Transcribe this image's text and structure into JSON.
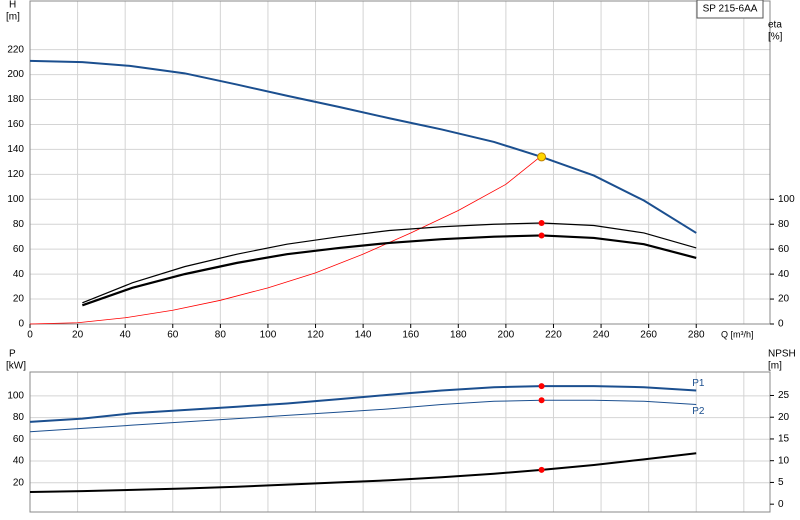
{
  "chart_data": [
    {
      "type": "line",
      "annotation": "SP 215-6AA",
      "y_label": "H",
      "y_unit": "[m]",
      "y2_label": "eta",
      "y2_unit": "[%]",
      "x_label": "Q [m³/h]",
      "xlim": [
        0,
        311
      ],
      "xticks": [
        0,
        20,
        40,
        60,
        80,
        100,
        120,
        140,
        160,
        180,
        200,
        220,
        240,
        260,
        280
      ],
      "x_grid": [
        0,
        20,
        40,
        60,
        80,
        100,
        120,
        140,
        160,
        180,
        200,
        220,
        240,
        260,
        280,
        300
      ],
      "show_x_tick_labels": true,
      "ylim": [
        0,
        259
      ],
      "yticks": [
        0,
        20,
        40,
        60,
        80,
        100,
        120,
        140,
        160,
        180,
        200,
        220
      ],
      "y2lim": [
        0,
        259
      ],
      "y2ticks": [
        0,
        20,
        40,
        60,
        80,
        100
      ],
      "grid": true,
      "series": [
        {
          "color": "#1b4f8f",
          "line_width": 2,
          "x": [
            0,
            22,
            42,
            65,
            87,
            108,
            130,
            151,
            173,
            195,
            215,
            237,
            258,
            280
          ],
          "values": [
            211,
            210,
            207,
            201,
            192,
            183,
            174,
            165,
            156,
            146,
            134,
            119,
            99,
            73
          ]
        },
        {
          "color": "#ff0000",
          "line_width": 0.8,
          "x": [
            0,
            20,
            40,
            60,
            80,
            100,
            120,
            140,
            160,
            180,
            200,
            215
          ],
          "values": [
            0,
            1,
            5,
            11,
            19,
            29,
            41,
            56,
            73,
            91,
            112,
            135
          ]
        },
        {
          "color": "#000000",
          "line_width": 1.2,
          "axis": "y2",
          "x": [
            22,
            43,
            65,
            87,
            108,
            130,
            151,
            173,
            195,
            215,
            237,
            258,
            280
          ],
          "values": [
            17,
            33,
            46,
            56,
            64,
            70,
            75,
            78,
            80,
            81,
            79,
            73,
            61
          ]
        },
        {
          "color": "#000000",
          "line_width": 2.2,
          "axis": "y2",
          "x": [
            22,
            43,
            65,
            87,
            108,
            130,
            151,
            173,
            195,
            215,
            237,
            258,
            280
          ],
          "values": [
            15,
            29,
            40,
            49,
            56,
            61,
            65,
            68,
            70,
            71,
            69,
            64,
            53
          ]
        }
      ],
      "points": [
        {
          "x": 215,
          "y": 134,
          "color": "#ffd700"
        },
        {
          "x": 215,
          "y": 81,
          "color": "#ff0000",
          "axis": "y2"
        },
        {
          "x": 215,
          "y": 71,
          "color": "#ff0000",
          "axis": "y2"
        }
      ]
    },
    {
      "type": "line",
      "y_label": "P",
      "y_unit": "[kW]",
      "y2_label": "NPSH",
      "y2_unit": "[m]",
      "xlim": [
        0,
        311
      ],
      "x_grid": [
        0,
        20,
        40,
        60,
        80,
        100,
        120,
        140,
        160,
        180,
        200,
        220,
        240,
        260,
        280,
        300
      ],
      "show_x_tick_labels": false,
      "ylim": [
        -7,
        122
      ],
      "yticks": [
        20,
        40,
        60,
        80,
        100
      ],
      "y2lim": [
        -1.8,
        30.4
      ],
      "y2ticks": [
        0,
        5,
        10,
        15,
        20,
        25
      ],
      "grid": true,
      "series": [
        {
          "name": "P1",
          "color": "#1b4f8f",
          "line_width": 2,
          "x": [
            0,
            22,
            43,
            65,
            87,
            108,
            130,
            151,
            173,
            195,
            215,
            237,
            258,
            280
          ],
          "values": [
            76,
            79,
            84,
            87,
            90,
            93,
            97,
            101,
            105,
            108,
            109,
            109,
            108,
            105
          ]
        },
        {
          "name": "P2",
          "color": "#1b4f8f",
          "line_width": 1,
          "x": [
            0,
            22,
            43,
            65,
            87,
            108,
            130,
            151,
            173,
            195,
            215,
            237,
            258,
            280
          ],
          "values": [
            67,
            70,
            73,
            76,
            79,
            82,
            85,
            88,
            92,
            95,
            96,
            96,
            95,
            92
          ]
        },
        {
          "color": "#000000",
          "line_width": 2,
          "axis": "y2",
          "x": [
            0,
            22,
            43,
            65,
            87,
            108,
            130,
            151,
            173,
            195,
            215,
            237,
            258,
            280
          ],
          "values": [
            2.8,
            3,
            3.3,
            3.6,
            4,
            4.5,
            5,
            5.5,
            6.2,
            7,
            7.9,
            9,
            10.3,
            11.7
          ]
        }
      ],
      "points": [
        {
          "x": 215,
          "y": 109,
          "color": "#ff0000"
        },
        {
          "x": 215,
          "y": 96,
          "color": "#ff0000"
        },
        {
          "x": 215,
          "y": 7.9,
          "color": "#ff0000",
          "axis": "y2"
        }
      ]
    }
  ]
}
